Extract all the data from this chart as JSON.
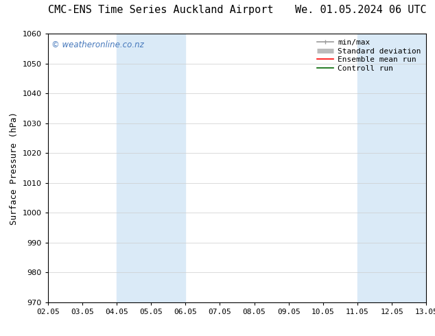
{
  "title_left": "CMC-ENS Time Series Auckland Airport",
  "title_right": "We. 01.05.2024 06 UTC",
  "ylabel": "Surface Pressure (hPa)",
  "ylim": [
    970,
    1060
  ],
  "yticks": [
    970,
    980,
    990,
    1000,
    1010,
    1020,
    1030,
    1040,
    1050,
    1060
  ],
  "xtick_labels": [
    "02.05",
    "03.05",
    "04.05",
    "05.05",
    "06.05",
    "07.05",
    "08.05",
    "09.05",
    "10.05",
    "11.05",
    "12.05",
    "13.05"
  ],
  "xtick_positions": [
    0,
    1,
    2,
    3,
    4,
    5,
    6,
    7,
    8,
    9,
    10,
    11
  ],
  "shaded_bands": [
    {
      "x_start": 2,
      "x_end": 4,
      "color": "#daeaf7"
    },
    {
      "x_start": 9,
      "x_end": 11,
      "color": "#daeaf7"
    }
  ],
  "watermark_text": "© weatheronline.co.nz",
  "watermark_color": "#4477bb",
  "legend_items": [
    {
      "label": "min/max",
      "color": "#999999",
      "lw": 1.2
    },
    {
      "label": "Standard deviation",
      "color": "#bbbbbb",
      "lw": 5
    },
    {
      "label": "Ensemble mean run",
      "color": "#ff0000",
      "lw": 1.2
    },
    {
      "label": "Controll run",
      "color": "#006600",
      "lw": 1.2
    }
  ],
  "bg_color": "#ffffff",
  "plot_bg_color": "#ffffff",
  "title_fontsize": 11,
  "tick_label_fontsize": 8,
  "ylabel_fontsize": 9,
  "legend_fontsize": 8
}
